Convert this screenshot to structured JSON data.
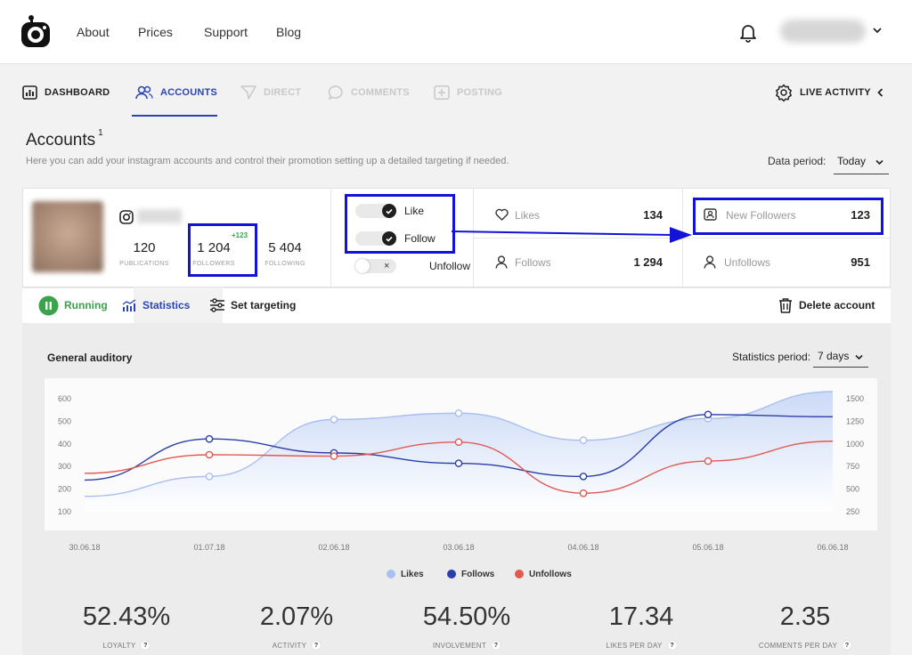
{
  "nav": {
    "links": [
      "About",
      "Prices",
      "Support",
      "Blog"
    ]
  },
  "tabs": {
    "dashboard": "DASHBOARD",
    "accounts": "ACCOUNTS",
    "direct": "DIRECT",
    "comments": "COMMENTS",
    "posting": "POSTING",
    "live_activity": "LIVE ACTIVITY"
  },
  "page": {
    "title": "Accounts",
    "title_count": "1",
    "subtitle": "Here you can add your instagram accounts and control their promotion setting up a detailed targeting if needed.",
    "data_period_label": "Data period:",
    "data_period_value": "Today"
  },
  "account": {
    "publications": {
      "value": "120",
      "label": "PUBLICATIONS"
    },
    "followers": {
      "value": "1 204",
      "label": "FOLLOWERS",
      "delta": "+123"
    },
    "following": {
      "value": "5 404",
      "label": "FOLLOWING"
    },
    "toggles": [
      {
        "label": "Like",
        "on": true
      },
      {
        "label": "Follow",
        "on": true
      },
      {
        "label": "Unfollow",
        "on": false
      }
    ],
    "metrics": {
      "likes": {
        "label": "Likes",
        "value": "134"
      },
      "new_followers": {
        "label": "New Followers",
        "value": "123"
      },
      "follows": {
        "label": "Follows",
        "value": "1 294"
      },
      "unfollows": {
        "label": "Unfollows",
        "value": "951"
      }
    }
  },
  "toolbar": {
    "running": "Running",
    "statistics": "Statistics",
    "set_targeting": "Set targeting",
    "delete_account": "Delete account"
  },
  "stats": {
    "title": "General auditory",
    "period_label": "Statistics period:",
    "period_value": "7 days"
  },
  "chart_data": {
    "type": "line",
    "title": "General auditory",
    "x": [
      "30.06.18",
      "01.07.18",
      "02.06.18",
      "03.06.18",
      "04.06.18",
      "05.06.18",
      "06.06.18"
    ],
    "y_left_ticks": [
      600,
      500,
      400,
      300,
      200,
      100
    ],
    "y_right_ticks": [
      1500,
      1250,
      1000,
      750,
      500,
      250
    ],
    "y_left_range": [
      0,
      600
    ],
    "y_right_range": [
      0,
      1500
    ],
    "series": [
      {
        "name": "Likes",
        "color": "#a9bff0",
        "axis": "right",
        "values": [
          420,
          640,
          1270,
          1340,
          1040,
          1280,
          1740
        ]
      },
      {
        "name": "Follows",
        "color": "#2a3fa8",
        "axis": "left",
        "values": [
          240,
          422,
          360,
          314,
          256,
          530,
          520
        ]
      },
      {
        "name": "Unfollows",
        "color": "#e05a52",
        "axis": "left",
        "values": [
          270,
          352,
          346,
          408,
          182,
          324,
          412
        ]
      }
    ],
    "marker_points": 5,
    "legend_position": "bottom"
  },
  "kpis": [
    {
      "value": "52.43%",
      "label": "LOYALTY"
    },
    {
      "value": "2.07%",
      "label": "ACTIVITY"
    },
    {
      "value": "54.50%",
      "label": "INVOLVEMENT"
    },
    {
      "value": "17.34",
      "label": "LIKES PER DAY"
    },
    {
      "value": "2.35",
      "label": "COMMENTS PER DAY"
    }
  ],
  "help_glyph": "?",
  "colors": {
    "accent": "#2a44b7",
    "running": "#3aa34b",
    "highlight": "#1212d8"
  }
}
